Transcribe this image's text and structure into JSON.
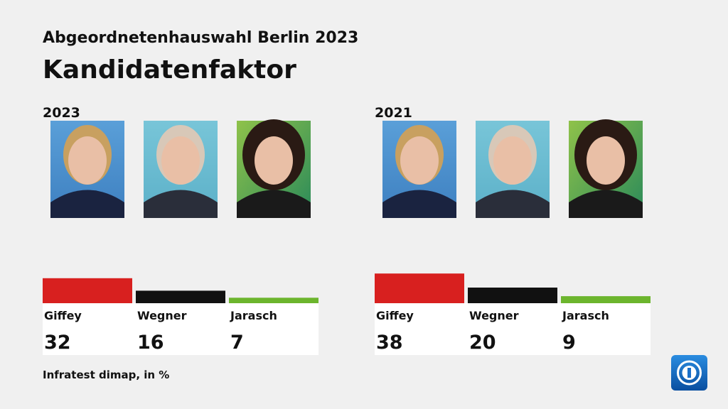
{
  "header": {
    "supertitle": "Abgeordnetenhauswahl Berlin 2023",
    "title": "Kandidatenfaktor"
  },
  "chart_data": [
    {
      "type": "bar",
      "title": "2023",
      "categories": [
        "Giffey",
        "Wegner",
        "Jarasch"
      ],
      "values": [
        32,
        16,
        7
      ],
      "colors": [
        "#d8201f",
        "#111111",
        "#6cb52d"
      ]
    },
    {
      "type": "bar",
      "title": "2021",
      "categories": [
        "Giffey",
        "Wegner",
        "Jarasch"
      ],
      "values": [
        38,
        20,
        9
      ],
      "colors": [
        "#d8201f",
        "#111111",
        "#6cb52d"
      ]
    }
  ],
  "source": "Infratest dimap, in %"
}
